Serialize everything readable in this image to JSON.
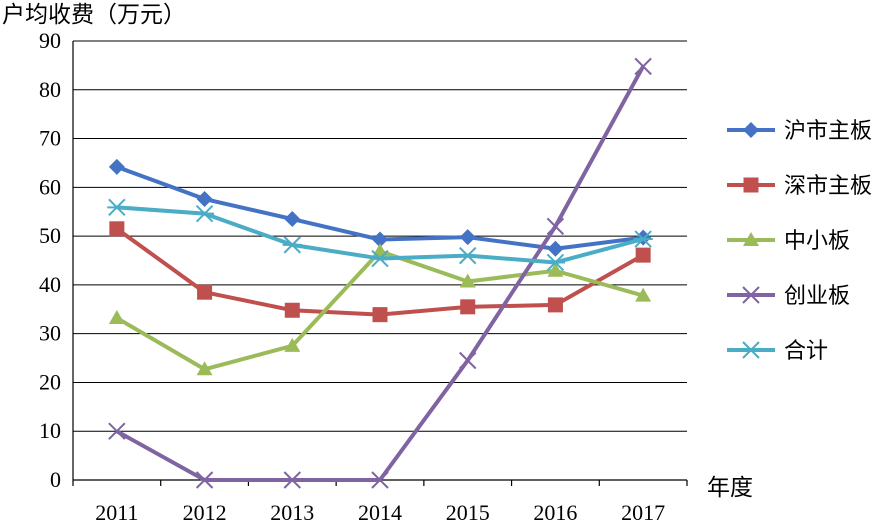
{
  "chart_data": {
    "type": "line",
    "ylabel": "户均收费（万元）",
    "xlabel": "年度",
    "categories": [
      "2011",
      "2012",
      "2013",
      "2014",
      "2015",
      "2016",
      "2017"
    ],
    "ylim": [
      0,
      90
    ],
    "yticks": [
      0,
      10,
      20,
      30,
      40,
      50,
      60,
      70,
      80,
      90
    ],
    "grid": true,
    "legend_position": "right",
    "series": [
      {
        "name": "沪市主板",
        "color": "#4472C4",
        "marker": "diamond",
        "values": [
          64.2,
          57.6,
          53.5,
          49.3,
          49.8,
          47.4,
          49.7
        ]
      },
      {
        "name": "深市主板",
        "color": "#C0504D",
        "marker": "square",
        "values": [
          51.5,
          38.5,
          34.8,
          33.9,
          35.5,
          35.9,
          46.1
        ]
      },
      {
        "name": "中小板",
        "color": "#9BBB59",
        "marker": "triangle",
        "values": [
          33.2,
          22.7,
          27.5,
          46.9,
          40.7,
          42.9,
          37.8
        ]
      },
      {
        "name": "创业板",
        "color": "#8064A2",
        "marker": "x",
        "values": [
          10.0,
          0.0,
          0.0,
          0.0,
          24.5,
          52.0,
          84.8
        ]
      },
      {
        "name": "合计",
        "color": "#4BACC6",
        "marker": "asterisk",
        "values": [
          55.9,
          54.6,
          48.2,
          45.4,
          46.0,
          44.6,
          49.4
        ]
      }
    ]
  }
}
